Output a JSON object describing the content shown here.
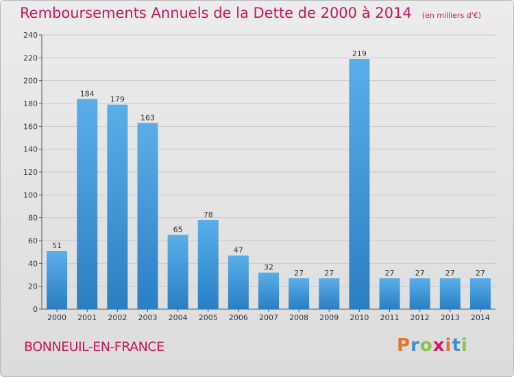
{
  "chart_data": {
    "type": "bar",
    "title": "Remboursements Annuels de la Dette de 2000 à 2014",
    "unit": "(en milliers d'€)",
    "categories": [
      "2000",
      "2001",
      "2002",
      "2003",
      "2004",
      "2005",
      "2006",
      "2007",
      "2008",
      "2009",
      "2010",
      "2011",
      "2012",
      "2013",
      "2014"
    ],
    "values": [
      51,
      184,
      179,
      163,
      65,
      78,
      47,
      32,
      27,
      27,
      219,
      27,
      27,
      27,
      27
    ],
    "ylim": [
      0,
      240
    ],
    "yticks": [
      0,
      20,
      40,
      60,
      80,
      100,
      120,
      140,
      160,
      180,
      200,
      220,
      240
    ],
    "grid": true,
    "bar_color_light": "#5aaee8",
    "bar_color_dark": "#2a7fc4"
  },
  "footer": {
    "city": "BONNEUIL-EN-FRANCE",
    "logo_letters": [
      "P",
      "r",
      "o",
      "x",
      "i",
      "t",
      "i"
    ],
    "logo_colors": [
      "#e4762b",
      "#3a8fd0",
      "#8bc34a",
      "#d81b60",
      "#e4762b",
      "#3a8fd0",
      "#8bc34a"
    ]
  },
  "colors": {
    "title": "#c2185b",
    "grid": "#c8c8c8"
  }
}
